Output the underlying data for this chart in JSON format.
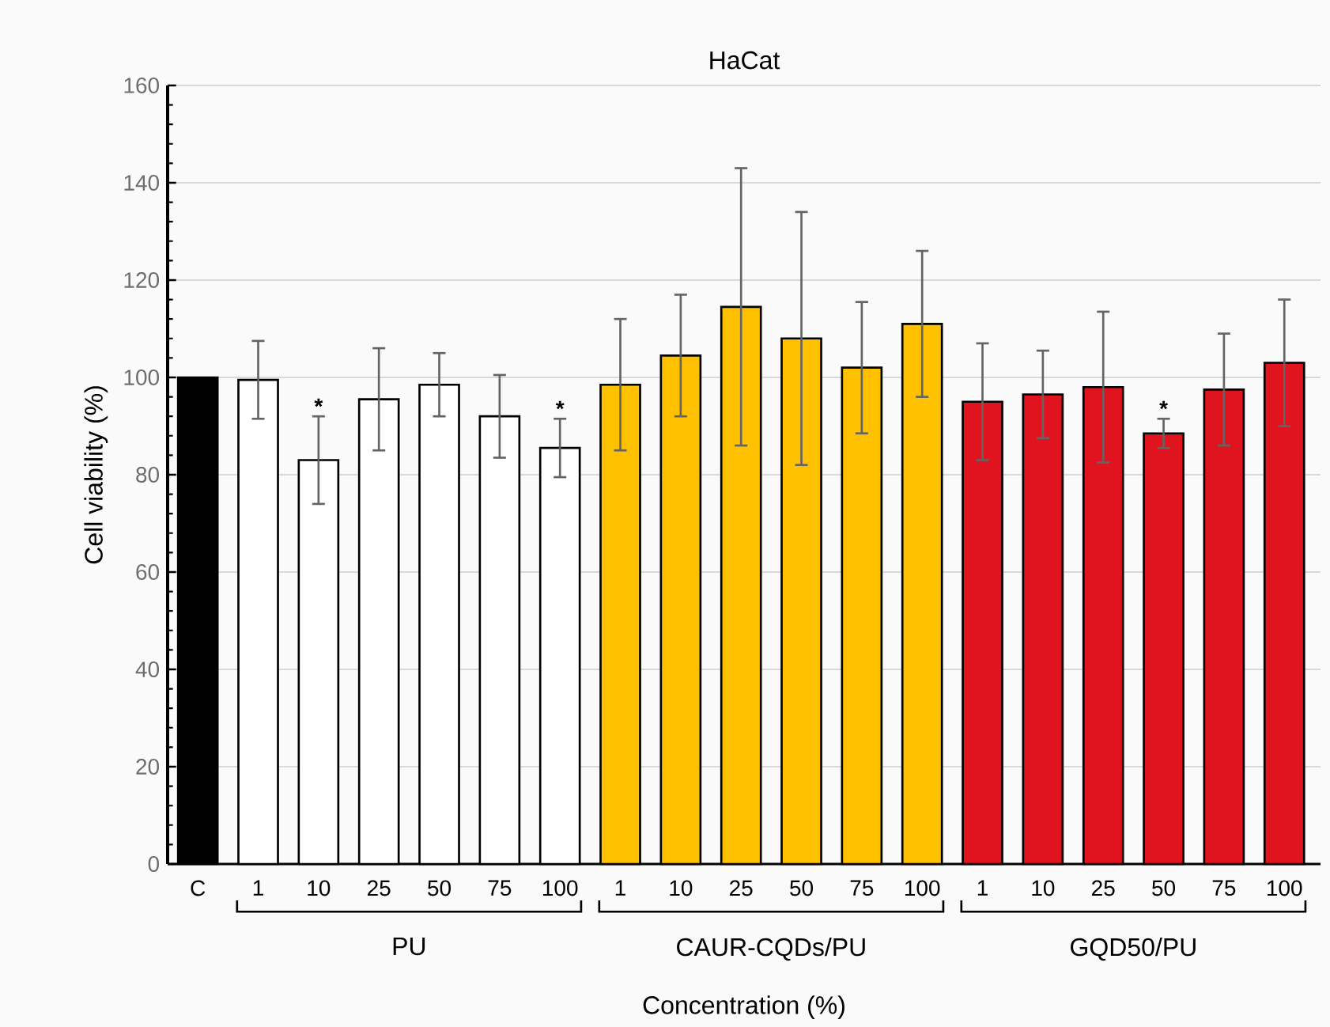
{
  "chart_data": {
    "type": "bar",
    "title": "HaCat",
    "xlabel": "Concentration (%)",
    "ylabel": "Cell viability (%)",
    "categories": [
      "C",
      "1",
      "10",
      "25",
      "50",
      "75",
      "100",
      "1",
      "10",
      "25",
      "50",
      "75",
      "100",
      "1",
      "10",
      "25",
      "50",
      "75",
      "100"
    ],
    "values": [
      100,
      99.5,
      83,
      95.5,
      98.5,
      92,
      85.5,
      98.5,
      104.5,
      114.5,
      108,
      102,
      111,
      95,
      96.5,
      98,
      88.5,
      97.5,
      103
    ],
    "errors": [
      null,
      8,
      9,
      10.5,
      6.5,
      8.5,
      6,
      13.5,
      12.5,
      28.5,
      26,
      13.5,
      15,
      12,
      9,
      15.5,
      3,
      11.5,
      13
    ],
    "colors": [
      "#000000",
      "#ffffff",
      "#ffffff",
      "#ffffff",
      "#ffffff",
      "#ffffff",
      "#ffffff",
      "#ffc000",
      "#ffc000",
      "#ffc000",
      "#ffc000",
      "#ffc000",
      "#ffc000",
      "#e0141e",
      "#e0141e",
      "#e0141e",
      "#e0141e",
      "#e0141e",
      "#e0141e"
    ],
    "value_labels": [
      null,
      null,
      "*",
      null,
      null,
      null,
      "*",
      null,
      null,
      null,
      null,
      null,
      null,
      null,
      null,
      null,
      "*",
      null,
      null
    ],
    "annotations": [
      "PU",
      "CAUR-CQDs/PU",
      "GQD50/PU"
    ],
    "ylim": [
      0,
      160
    ],
    "yticks": [
      0,
      20,
      40,
      60,
      80,
      100,
      120,
      140,
      160
    ],
    "grid": "y"
  }
}
